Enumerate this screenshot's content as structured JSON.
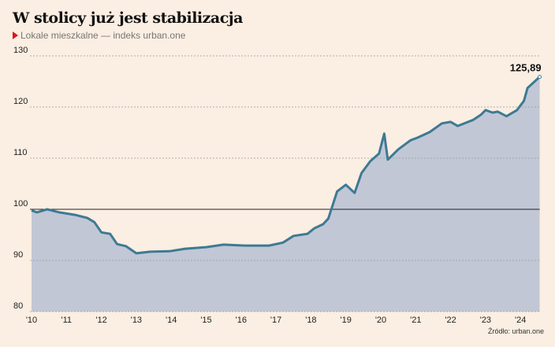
{
  "title": "W stolicy już jest stabilizacja",
  "subtitle": "Lokale mieszkalne — indeks urban.one",
  "source": "Źródło: urban.one",
  "colors": {
    "line": "#3d7a93",
    "area": "#c2c7d6",
    "background": "#fbeee2",
    "marker": "#e0121b"
  },
  "chart_data": {
    "type": "area",
    "title": "W stolicy już jest stabilizacja",
    "ylim": [
      80,
      130
    ],
    "yticks": [
      80,
      90,
      100,
      110,
      120,
      130
    ],
    "reference_line": 100,
    "xlim": [
      2010,
      2024.55
    ],
    "xticks": [
      {
        "year": 2010,
        "label": "'10"
      },
      {
        "year": 2011,
        "label": "'11"
      },
      {
        "year": 2012,
        "label": "'12"
      },
      {
        "year": 2013,
        "label": "'13"
      },
      {
        "year": 2014,
        "label": "'14"
      },
      {
        "year": 2015,
        "label": "'15"
      },
      {
        "year": 2016,
        "label": "'16"
      },
      {
        "year": 2017,
        "label": "'17"
      },
      {
        "year": 2018,
        "label": "'18"
      },
      {
        "year": 2019,
        "label": "'19"
      },
      {
        "year": 2020,
        "label": "'20"
      },
      {
        "year": 2021,
        "label": "'21"
      },
      {
        "year": 2022,
        "label": "'22"
      },
      {
        "year": 2023,
        "label": "'23"
      },
      {
        "year": 2024,
        "label": "'24"
      }
    ],
    "grid": "horizontal dashed",
    "last_value_label": "125,89",
    "x": [
      2010.0,
      2010.15,
      2010.45,
      2010.8,
      2011.25,
      2011.6,
      2011.8,
      2012.0,
      2012.25,
      2012.45,
      2012.7,
      2013.0,
      2013.4,
      2013.95,
      2014.4,
      2015.0,
      2015.5,
      2016.1,
      2016.8,
      2017.2,
      2017.5,
      2017.9,
      2018.1,
      2018.35,
      2018.5,
      2018.75,
      2019.0,
      2019.25,
      2019.45,
      2019.7,
      2019.95,
      2020.1,
      2020.2,
      2020.5,
      2020.85,
      2021.05,
      2021.4,
      2021.75,
      2022.0,
      2022.2,
      2022.65,
      2022.87,
      2023.0,
      2023.2,
      2023.35,
      2023.6,
      2023.9,
      2024.1,
      2024.2,
      2024.55
    ],
    "values": [
      99.8,
      99.4,
      100.0,
      99.4,
      98.9,
      98.3,
      97.5,
      95.5,
      95.2,
      93.2,
      92.8,
      91.4,
      91.7,
      91.8,
      92.3,
      92.6,
      93.1,
      92.9,
      92.9,
      93.5,
      94.8,
      95.2,
      96.3,
      97.1,
      98.2,
      103.5,
      104.8,
      103.2,
      107.1,
      109.4,
      110.9,
      114.8,
      109.7,
      111.7,
      113.5,
      114.0,
      115.1,
      116.8,
      117.1,
      116.3,
      117.5,
      118.5,
      119.4,
      118.9,
      119.1,
      118.2,
      119.4,
      121.2,
      123.7,
      125.89
    ]
  }
}
